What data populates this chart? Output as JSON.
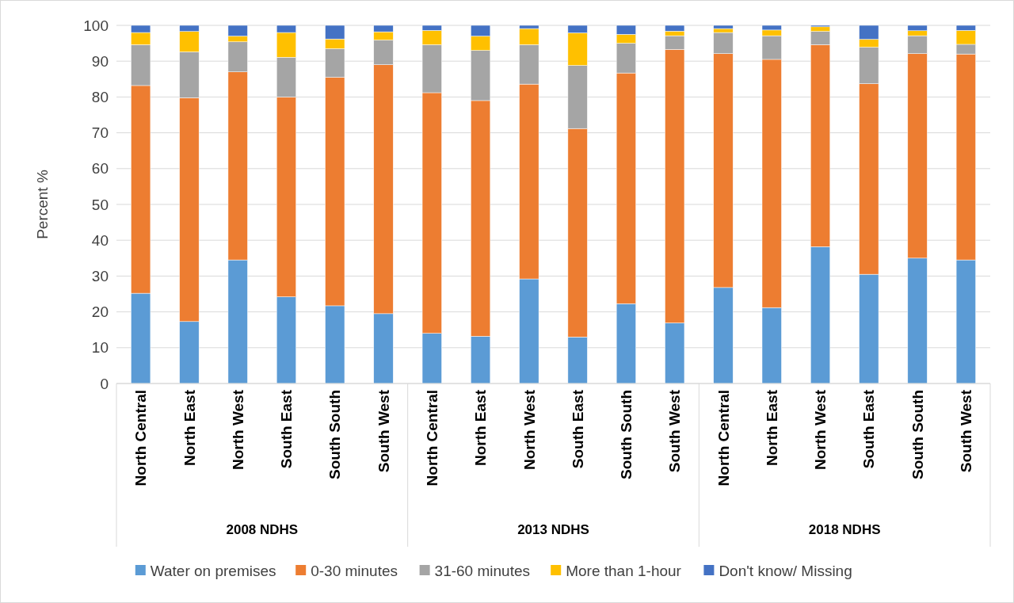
{
  "chart_data": {
    "type": "bar",
    "stacked": true,
    "ylabel": "Percent %",
    "ylim": [
      0,
      100
    ],
    "yticks": [
      0,
      10,
      20,
      30,
      40,
      50,
      60,
      70,
      80,
      90,
      100
    ],
    "grid": "y",
    "legend": "bottom",
    "categories": [
      "North Central",
      "North East",
      "North West",
      "South East",
      "South South",
      "South West",
      "North Central",
      "North East",
      "North West",
      "South East",
      "South South",
      "South West",
      "North Central",
      "North East",
      "North West",
      "South East",
      "South South",
      "South West"
    ],
    "annotations": [
      "2008 NDHS",
      "2013 NDHS",
      "2018 NDHS"
    ],
    "series": [
      {
        "name": "Water on premises",
        "color": "#5b9bd5",
        "values": [
          25.2,
          17.3,
          34.5,
          24.2,
          21.7,
          19.5,
          14,
          13.2,
          29.2,
          13,
          22.3,
          16.9,
          26.8,
          21.2,
          38.2,
          30.5,
          35,
          34.5
        ]
      },
      {
        "name": "0-30 minutes",
        "color": "#ed7d31",
        "values": [
          58,
          62.5,
          52.5,
          55.8,
          63.8,
          69.5,
          67.2,
          65.8,
          54.4,
          58.2,
          64.4,
          76.4,
          65.3,
          69.3,
          56.4,
          53.2,
          57.1,
          57.5
        ]
      },
      {
        "name": "31-60 minutes",
        "color": "#a5a5a5",
        "values": [
          11.4,
          12.8,
          8.4,
          11.1,
          8,
          6.9,
          13.4,
          14,
          11,
          17.6,
          8.3,
          3.8,
          5.9,
          6.6,
          3.7,
          10.2,
          5,
          2.7
        ]
      },
      {
        "name": "More than 1-hour",
        "color": "#ffc000",
        "values": [
          3.4,
          5.7,
          1.6,
          6.9,
          2.7,
          2.3,
          4,
          4,
          4.5,
          9.1,
          2.5,
          1.3,
          1.1,
          1.6,
          1.3,
          2.2,
          1.4,
          3.9
        ]
      },
      {
        "name": "Don't know/ Missing",
        "color": "#4472c4",
        "values": [
          2,
          1.7,
          3,
          2,
          3.8,
          1.8,
          1.4,
          3,
          0.9,
          2.1,
          2.5,
          1.6,
          0.9,
          1.3,
          0.4,
          3.9,
          1.5,
          1.4
        ]
      }
    ]
  }
}
